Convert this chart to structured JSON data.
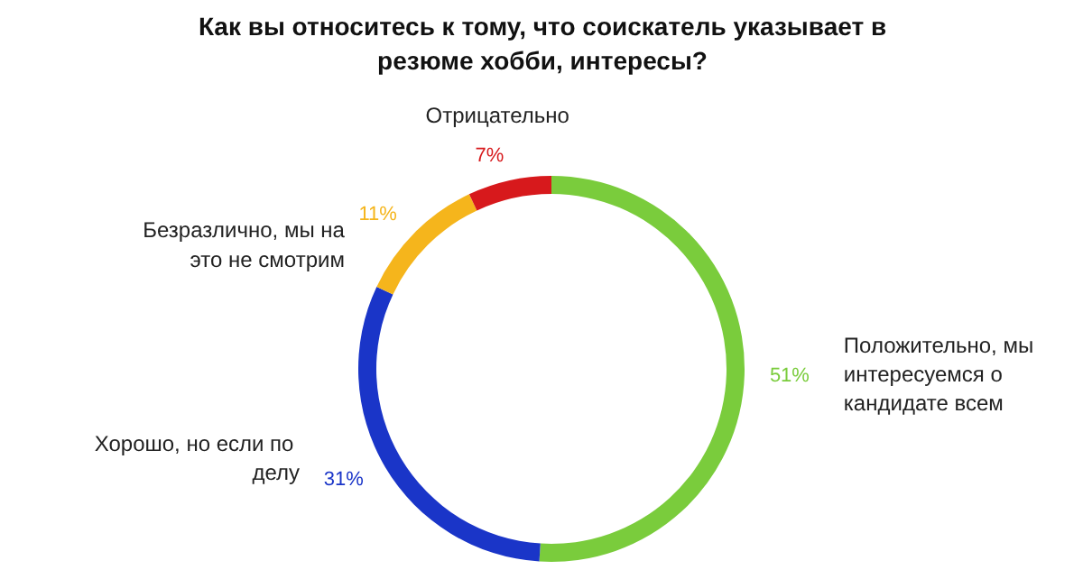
{
  "chart_data": {
    "type": "donut",
    "title": "Как вы относитесь к тому, что соискатель указывает в резюме хобби, интересы?",
    "categories": [
      "Положительно,  мы интересуемся о кандидате всем",
      "Хорошо,  но если по делу",
      "Безразлично, мы на это не смотрим",
      "Отрицательно"
    ],
    "values": [
      51,
      31,
      11,
      7
    ],
    "colors": [
      "#7acc3c",
      "#1a35c8",
      "#f5b51c",
      "#d7191c"
    ],
    "value_labels": [
      "51%",
      "31%",
      "11%",
      "7%"
    ]
  }
}
